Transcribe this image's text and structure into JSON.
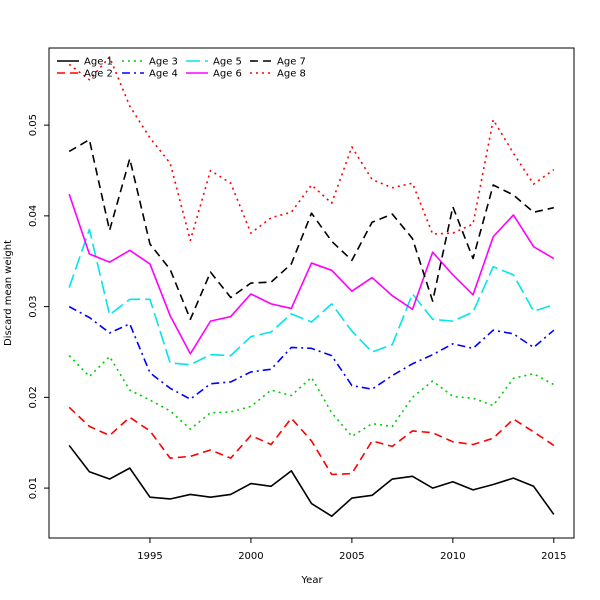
{
  "chart_data": {
    "type": "line",
    "title": "",
    "xlabel": "Year",
    "ylabel": "Discard mean weight",
    "xlim": [
      1990,
      2016
    ],
    "ylim": [
      0.0045,
      0.0585
    ],
    "xticks": [
      "1995",
      "2000",
      "2005",
      "2010",
      "2015"
    ],
    "yticks": [
      "0.01",
      "0.02",
      "0.03",
      "0.04",
      "0.05"
    ],
    "legend_position": "top-left",
    "grid": false,
    "x": [
      1991,
      1992,
      1993,
      1994,
      1995,
      1996,
      1997,
      1998,
      1999,
      2000,
      2001,
      2002,
      2003,
      2004,
      2005,
      2006,
      2007,
      2008,
      2009,
      2010,
      2011,
      2012,
      2013,
      2014,
      2015
    ],
    "series": [
      {
        "name": "Age 1",
        "color": "#000000",
        "dash": "solid",
        "values": [
          0.0147,
          0.0118,
          0.011,
          0.0122,
          0.009,
          0.0088,
          0.0093,
          0.009,
          0.0093,
          0.0105,
          0.0102,
          0.0119,
          0.0083,
          0.0069,
          0.0089,
          0.0092,
          0.011,
          0.0113,
          0.01,
          0.0107,
          0.0098,
          0.0104,
          0.0111,
          0.0102,
          0.0071
        ]
      },
      {
        "name": "Age 2",
        "color": "#ff0000",
        "dash": "dashed",
        "values": [
          0.0189,
          0.0168,
          0.0158,
          0.0178,
          0.0163,
          0.0133,
          0.0135,
          0.0142,
          0.0133,
          0.0158,
          0.0148,
          0.0177,
          0.0152,
          0.0115,
          0.0116,
          0.0152,
          0.0146,
          0.0163,
          0.0161,
          0.0151,
          0.0148,
          0.0155,
          0.0176,
          0.0162,
          0.0147
        ]
      },
      {
        "name": "Age 3",
        "color": "#00cc00",
        "dash": "dotted",
        "values": [
          0.0246,
          0.0223,
          0.0245,
          0.0208,
          0.0197,
          0.0185,
          0.0165,
          0.0183,
          0.0184,
          0.019,
          0.0208,
          0.0202,
          0.0222,
          0.0183,
          0.0157,
          0.0171,
          0.0168,
          0.02,
          0.0218,
          0.0201,
          0.0199,
          0.0191,
          0.0221,
          0.0226,
          0.0214
        ]
      },
      {
        "name": "Age 4",
        "color": "#0000ff",
        "dash": "dashdot",
        "values": [
          0.03,
          0.0288,
          0.0271,
          0.0281,
          0.0227,
          0.021,
          0.0198,
          0.0215,
          0.0217,
          0.0228,
          0.0231,
          0.0255,
          0.0254,
          0.0246,
          0.0213,
          0.0209,
          0.0224,
          0.0237,
          0.0247,
          0.0259,
          0.0254,
          0.0274,
          0.027,
          0.0255,
          0.0274
        ]
      },
      {
        "name": "Age 5",
        "color": "#00e5ee",
        "dash": "longdash",
        "values": [
          0.0321,
          0.0385,
          0.0291,
          0.0308,
          0.0308,
          0.0238,
          0.0236,
          0.0247,
          0.0246,
          0.0267,
          0.0272,
          0.0292,
          0.0283,
          0.0303,
          0.0273,
          0.025,
          0.0258,
          0.0314,
          0.0286,
          0.0284,
          0.0294,
          0.0344,
          0.0335,
          0.0295,
          0.0302
        ]
      },
      {
        "name": "Age 6",
        "color": "#ff00ff",
        "dash": "solid",
        "values": [
          0.0424,
          0.0358,
          0.0349,
          0.0362,
          0.0347,
          0.029,
          0.0248,
          0.0284,
          0.0289,
          0.0314,
          0.0303,
          0.0298,
          0.0348,
          0.034,
          0.0317,
          0.0332,
          0.0312,
          0.0297,
          0.036,
          0.0335,
          0.0313,
          0.0377,
          0.0401,
          0.0366,
          0.0353
        ]
      },
      {
        "name": "Age 7",
        "color": "#000000",
        "dash": "dashed",
        "values": [
          0.0471,
          0.0484,
          0.0384,
          0.0463,
          0.0369,
          0.0341,
          0.0286,
          0.0338,
          0.031,
          0.0326,
          0.0327,
          0.0347,
          0.0403,
          0.0372,
          0.0351,
          0.0393,
          0.0402,
          0.0375,
          0.0306,
          0.041,
          0.0353,
          0.0434,
          0.0423,
          0.0404,
          0.0409
        ]
      },
      {
        "name": "Age 8",
        "color": "#ff0000",
        "dash": "dotted",
        "values": [
          0.0567,
          0.055,
          0.0575,
          0.0521,
          0.0486,
          0.0458,
          0.0373,
          0.045,
          0.0436,
          0.0381,
          0.0398,
          0.0404,
          0.0434,
          0.0414,
          0.0476,
          0.044,
          0.0431,
          0.0436,
          0.038,
          0.0381,
          0.0391,
          0.0506,
          0.0469,
          0.0435,
          0.0451
        ]
      }
    ]
  }
}
